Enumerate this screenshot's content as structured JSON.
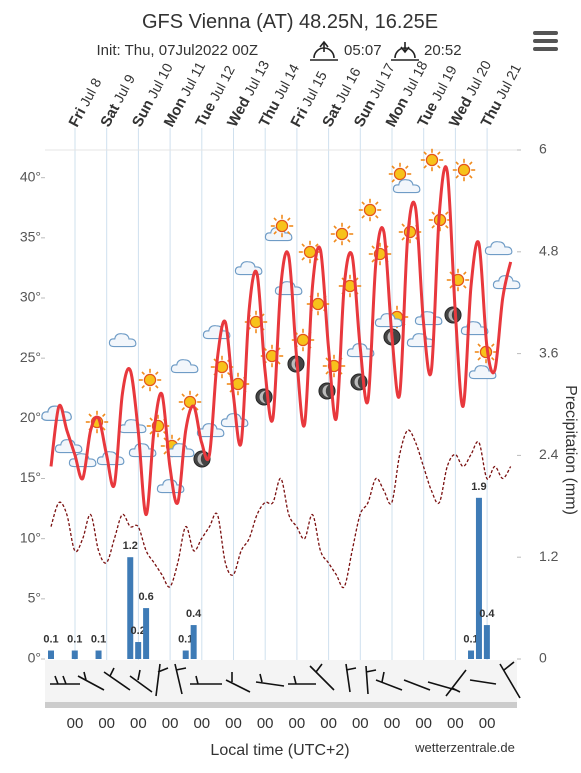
{
  "header": {
    "title": "GFS Vienna (AT) 48.25N, 16.25E",
    "init": "Init: Thu, 07Jul2022 00Z",
    "sunrise": "05:07",
    "sunset": "20:52"
  },
  "chart_data": {
    "type": "meteogram",
    "days": [
      {
        "weekday": "Fri",
        "date": "Jul 8"
      },
      {
        "weekday": "Sat",
        "date": "Jul 9"
      },
      {
        "weekday": "Sun",
        "date": "Jul 10"
      },
      {
        "weekday": "Mon",
        "date": "Jul 11"
      },
      {
        "weekday": "Tue",
        "date": "Jul 12"
      },
      {
        "weekday": "Wed",
        "date": "Jul 13"
      },
      {
        "weekday": "Thu",
        "date": "Jul 14"
      },
      {
        "weekday": "Fri",
        "date": "Jul 15"
      },
      {
        "weekday": "Sat",
        "date": "Jul 16"
      },
      {
        "weekday": "Sun",
        "date": "Jul 17"
      },
      {
        "weekday": "Mon",
        "date": "Jul 18"
      },
      {
        "weekday": "Tue",
        "date": "Jul 19"
      },
      {
        "weekday": "Wed",
        "date": "Jul 20"
      },
      {
        "weekday": "Thu",
        "date": "Jul 21"
      }
    ],
    "hour_label": "00",
    "x_label": "Local time (UTC+2)",
    "y2_label": "Precipitation (mm)",
    "ylim": [
      0,
      42.3
    ],
    "yticks": [
      {
        "value": 0,
        "label": "0°"
      },
      {
        "value": 5,
        "label": "5°"
      },
      {
        "value": 10,
        "label": "10°"
      },
      {
        "value": 15,
        "label": "15°"
      },
      {
        "value": 20,
        "label": "20°"
      },
      {
        "value": 25,
        "label": "25°"
      },
      {
        "value": 30,
        "label": "30°"
      },
      {
        "value": 35,
        "label": "35°"
      },
      {
        "value": 40,
        "label": "40°"
      }
    ],
    "y2lim": [
      0,
      6
    ],
    "y2ticks": [
      0,
      1.2,
      2.4,
      3.6,
      4.8,
      6
    ],
    "series": [
      {
        "color": "#e8383d",
        "values": [
          16,
          21,
          19,
          17,
          15,
          19,
          20,
          17,
          14.5,
          22,
          24,
          19,
          12,
          19,
          22,
          16,
          13,
          19,
          21,
          18,
          17,
          25,
          28,
          22,
          18,
          29,
          32,
          24,
          20,
          31,
          33.5,
          25,
          19.5,
          31,
          34,
          26,
          20,
          31,
          33.5,
          26,
          21.5,
          33,
          35.5,
          27,
          22,
          35,
          37.5,
          28,
          24,
          37,
          40.5,
          29,
          21,
          31,
          34.5,
          26,
          24,
          30,
          33
        ]
      },
      {
        "color": "#7a1010",
        "dashed": true,
        "values": [
          11,
          13,
          12,
          9,
          10,
          12,
          9,
          8,
          10,
          12,
          11,
          11,
          9,
          8,
          7,
          6,
          8,
          11,
          9,
          10,
          11,
          12,
          8,
          7,
          9,
          10,
          12,
          13,
          13,
          15,
          12,
          11,
          10,
          12,
          9,
          8,
          7,
          6,
          9,
          12,
          13,
          15,
          14,
          13,
          17,
          19,
          18,
          16,
          14,
          13,
          16,
          17,
          16,
          17,
          18,
          15,
          16,
          15,
          16
        ]
      },
      {
        "color": "#3e7bb6",
        "axis": "y2",
        "bar": true,
        "values": [
          0.1,
          0,
          0,
          0.1,
          0,
          0,
          0.1,
          0,
          0,
          0,
          1.2,
          0.2,
          0.6,
          0,
          0,
          0,
          0,
          0.1,
          0.4,
          0,
          0,
          0,
          0,
          0,
          0,
          0,
          0,
          0,
          0,
          0,
          0,
          0,
          0,
          0,
          0,
          0,
          0,
          0,
          0,
          0,
          0,
          0,
          0,
          0,
          0,
          0,
          0,
          0,
          0,
          0,
          0,
          0,
          0,
          0.1,
          1.9,
          0.4,
          0,
          0,
          0
        ]
      }
    ],
    "credit": "wetterzentrale.de"
  }
}
